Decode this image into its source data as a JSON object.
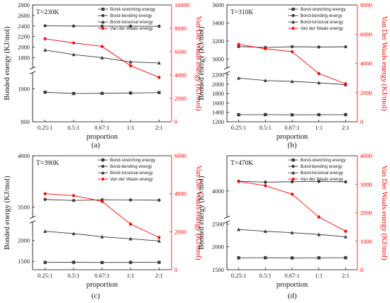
{
  "chart_data": [
    {
      "type": "line",
      "panel_label": "(a)",
      "annotation": "T=230K",
      "xlabel": "proportion",
      "ylabel": "Bonded energy (KJ/mol)",
      "y2label": "Van Der Waals energy (KJ/mol)",
      "categories": [
        "0.25:1",
        "0.5:1",
        "0.67:1",
        "1:1",
        "2:1"
      ],
      "y_axis": {
        "lower": [
          800,
          1100
        ],
        "upper": [
          1600,
          2800
        ],
        "ticks_lower": [
          800,
          1000
        ],
        "ticks_upper": [
          1800,
          2000,
          2200,
          2400,
          2600,
          2800
        ],
        "tick_labels": [
          "800",
          "1000",
          "1800",
          "2000",
          "2200",
          "2400",
          "2600",
          "2800"
        ]
      },
      "y2_axis": {
        "lim": [
          0,
          10000
        ],
        "ticks": [
          0,
          2000,
          4000,
          6000,
          8000,
          10000
        ],
        "tick_labels": [
          "0",
          "2000",
          "4000",
          "6000",
          "8000",
          "10000"
        ]
      },
      "series": [
        {
          "name": "Bond-stretching energy",
          "marker": "square",
          "axis": "left",
          "values": [
            980,
            972,
            973,
            975,
            978
          ]
        },
        {
          "name": "Bond-bending energy",
          "marker": "circle",
          "axis": "left",
          "values": [
            2405,
            2400,
            2398,
            2398,
            2397
          ]
        },
        {
          "name": "Bond-torsional energy",
          "marker": "triangle",
          "axis": "left",
          "values": [
            1945,
            1860,
            1800,
            1720,
            1700
          ]
        },
        {
          "name": "Van der Waals energy",
          "marker": "diamond",
          "axis": "right",
          "values": [
            7100,
            6750,
            6450,
            4800,
            3800
          ]
        }
      ]
    },
    {
      "type": "line",
      "panel_label": "(b)",
      "annotation": "T=310K",
      "xlabel": "proportion",
      "ylabel": "Bonded energy (KJ/mol)",
      "y2label": "Van Der Waals energy (KJ/mol)",
      "categories": [
        "0.25:1",
        "0.5:1",
        "0.67:1",
        "1:1",
        "2:1"
      ],
      "y_axis": {
        "lower": [
          1200,
          2250
        ],
        "upper": [
          2900,
          3600
        ],
        "ticks_lower": [
          1200,
          1400,
          1600,
          1800,
          2000,
          2200
        ],
        "ticks_upper": [
          3000,
          3200,
          3400,
          3600
        ],
        "tick_labels": [
          "1200",
          "1400",
          "1600",
          "1800",
          "2000",
          "2200",
          "3000",
          "3200",
          "3400",
          "3600"
        ]
      },
      "y2_axis": {
        "lim": [
          0,
          8000
        ],
        "ticks": [
          0,
          2000,
          4000,
          6000,
          8000
        ],
        "tick_labels": [
          "0",
          "2000",
          "4000",
          "6000",
          "8000"
        ]
      },
      "series": [
        {
          "name": "Bond-stretching energy",
          "marker": "square",
          "axis": "left",
          "values": [
            1350,
            1352,
            1348,
            1350,
            1352
          ]
        },
        {
          "name": "Bond-bending energy",
          "marker": "circle",
          "axis": "left",
          "values": [
            3140,
            3130,
            3138,
            3135,
            3137
          ]
        },
        {
          "name": "Bond-torsional energy",
          "marker": "triangle",
          "axis": "left",
          "values": [
            2130,
            2080,
            2060,
            2030,
            1990
          ]
        },
        {
          "name": "Van der Waals energy",
          "marker": "diamond",
          "axis": "right",
          "values": [
            5300,
            5000,
            4800,
            3300,
            2600
          ]
        }
      ]
    },
    {
      "type": "line",
      "panel_label": "(c)",
      "annotation": "T=390K",
      "xlabel": "proportion",
      "ylabel": "Bonded energy (KJ/mol)",
      "y2label": "Van Der Waals energy (KJ/mol)",
      "categories": [
        "0.25:1",
        "0.5:1",
        "0.67:1",
        "1:1",
        "2:1"
      ],
      "y_axis": {
        "lower": [
          1300,
          2450
        ],
        "upper": [
          3400,
          4000
        ],
        "ticks_lower": [
          1500,
          2000
        ],
        "ticks_upper": [
          3500,
          4000
        ],
        "tick_labels": [
          "1500",
          "2000",
          "3500",
          "4000"
        ]
      },
      "y2_axis": {
        "lim": [
          0,
          6000
        ],
        "ticks": [
          0,
          2000,
          4000,
          6000
        ],
        "tick_labels": [
          "0",
          "2000",
          "4000",
          "6000"
        ]
      },
      "series": [
        {
          "name": "Bond-stretching energy",
          "marker": "square",
          "axis": "left",
          "values": [
            1475,
            1478,
            1472,
            1476,
            1477
          ]
        },
        {
          "name": "Bond-bending energy",
          "marker": "circle",
          "axis": "left",
          "values": [
            3575,
            3565,
            3572,
            3570,
            3568
          ]
        },
        {
          "name": "Bond-torsional energy",
          "marker": "triangle",
          "axis": "left",
          "values": [
            2220,
            2165,
            2090,
            2040,
            1990
          ]
        },
        {
          "name": "Van der Waals energy",
          "marker": "diamond",
          "axis": "right",
          "values": [
            4000,
            3900,
            3600,
            2400,
            1700
          ]
        }
      ]
    },
    {
      "type": "line",
      "panel_label": "(d)",
      "annotation": "T=470K",
      "xlabel": "proportion",
      "ylabel": "Bonded energy (KJ/mol)",
      "y2label": "Van Der Waals energy (KJ/mol)",
      "categories": [
        "0.25:1",
        "0.5:1",
        "0.67:1",
        "1:1",
        "2:1"
      ],
      "y_axis": {
        "lower": [
          1500,
          2550
        ],
        "upper": [
          3700,
          4400
        ],
        "ticks_lower": [
          1500,
          2000,
          2500
        ],
        "ticks_upper": [
          4000
        ],
        "tick_labels": [
          "1500",
          "2000",
          "2500",
          "4000"
        ]
      },
      "y2_axis": {
        "lim": [
          0,
          4000
        ],
        "ticks": [
          0,
          1000,
          2000,
          3000,
          4000
        ],
        "tick_labels": [
          "0",
          "1000",
          "2000",
          "3000",
          "4000"
        ]
      },
      "series": [
        {
          "name": "Bond-stretching energy",
          "marker": "square",
          "axis": "left",
          "values": [
            1760,
            1762,
            1758,
            1760,
            1762
          ]
        },
        {
          "name": "Bond-bending energy",
          "marker": "circle",
          "axis": "left",
          "values": [
            4110,
            4100,
            4105,
            4108,
            4103
          ]
        },
        {
          "name": "Bond-torsional energy",
          "marker": "triangle",
          "axis": "left",
          "values": [
            2380,
            2340,
            2310,
            2270,
            2220
          ]
        },
        {
          "name": "Van der Waals energy",
          "marker": "diamond",
          "axis": "right",
          "values": [
            3100,
            2950,
            2650,
            1850,
            1350
          ]
        }
      ]
    }
  ],
  "colors": {
    "bonded": "#3a3a3a",
    "vdw": "#ff0000",
    "axis": "#000000"
  }
}
